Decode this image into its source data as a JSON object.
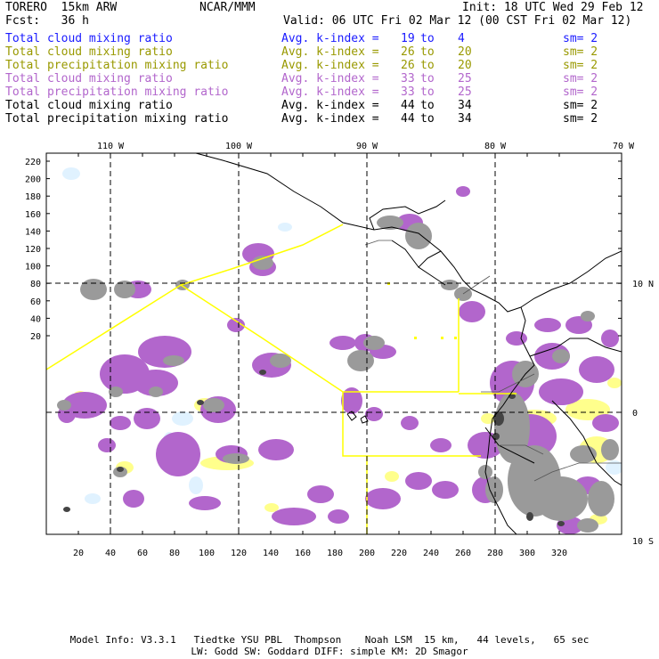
{
  "header": {
    "model": "TORERO  15km ARW",
    "center": "NCAR/MMM",
    "init": "Init: 18 UTC Wed 29 Feb 12",
    "fcst": "Fcst:   36 h",
    "valid": "Valid: 06 UTC Fri 02 Mar 12 (00 CST Fri 02 Mar 12)"
  },
  "legend": [
    {
      "field": "Total cloud mixing ratio",
      "kindex": "Avg. k-index =",
      "from": "19",
      "to_word": "to",
      "to": "4",
      "sm": "sm= 2",
      "color": "#1a1aff"
    },
    {
      "field": "Total cloud mixing ratio",
      "kindex": "Avg. k-index =",
      "from": "26",
      "to_word": "to",
      "to": "20",
      "sm": "sm= 2",
      "color": "#999900"
    },
    {
      "field": "Total precipitation mixing ratio",
      "kindex": "Avg. k-index =",
      "from": "26",
      "to_word": "to",
      "to": "20",
      "sm": "sm= 2",
      "color": "#999900"
    },
    {
      "field": "Total cloud mixing ratio",
      "kindex": "Avg. k-index =",
      "from": "33",
      "to_word": "to",
      "to": "25",
      "sm": "sm= 2",
      "color": "#b266cc"
    },
    {
      "field": "Total precipitation mixing ratio",
      "kindex": "Avg. k-index =",
      "from": "33",
      "to_word": "to",
      "to": "25",
      "sm": "sm= 2",
      "color": "#b266cc"
    },
    {
      "field": "Total cloud mixing ratio",
      "kindex": "Avg. k-index =",
      "from": "44",
      "to_word": "to",
      "to": "34",
      "sm": "sm= 2",
      "color": "#000000"
    },
    {
      "field": "Total precipitation mixing ratio",
      "kindex": "Avg. k-index =",
      "from": "44",
      "to_word": "to",
      "to": "34",
      "sm": "sm= 2",
      "color": "#000000"
    }
  ],
  "map": {
    "lon_labels": [
      "110 W",
      "100 W",
      "90 W",
      "80 W",
      "70 W"
    ],
    "lat_labels": [
      "10 N",
      "0",
      "10 S"
    ],
    "y_ticks": [
      "220",
      "200",
      "180",
      "160",
      "140",
      "120",
      "100",
      "80",
      "60",
      "40",
      "20"
    ],
    "x_ticks": [
      "20",
      "40",
      "60",
      "80",
      "100",
      "120",
      "140",
      "160",
      "180",
      "200",
      "220",
      "240",
      "260",
      "280",
      "300",
      "320"
    ],
    "colors": {
      "cloud_light": "#e0f2ff",
      "cloud_yellow": "#ffff8c",
      "cloud_purple": "#b266cc",
      "cloud_gray": "#9a9a9a",
      "cloud_dark": "#444444",
      "coast": "#000000",
      "domain_lines": "#ffff00"
    }
  },
  "footer": {
    "line1": "Model Info: V3.3.1   Tiedtke YSU PBL  Thompson    Noah LSM  15 km,   44 levels,   65 sec",
    "line2": "LW: Godd SW: Goddard DIFF: simple KM: 2D Smagor"
  }
}
